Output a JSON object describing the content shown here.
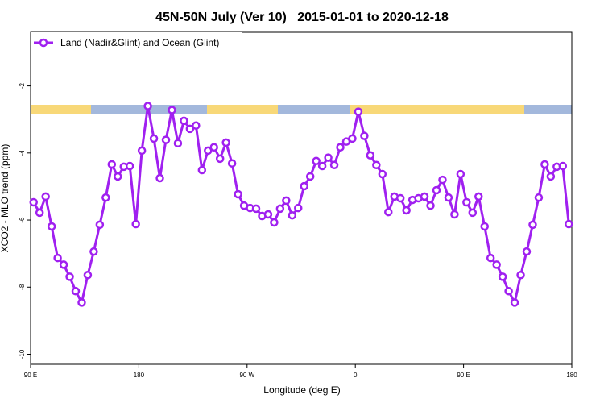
{
  "chart_data": {
    "type": "line",
    "title": "45N-50N July (Ver 10)   2015-01-01 to 2020-12-18",
    "xlabel": "Longitude (deg E)",
    "ylabel": "XCO2 - MLO trend (ppm)",
    "xlim": [
      90,
      540
    ],
    "xticks": [
      {
        "value": 90,
        "label": "90 E"
      },
      180,
      {
        "value": 270,
        "label": "90 W"
      },
      {
        "value": 360,
        "label": "0"
      },
      {
        "value": 450,
        "label": "90 E"
      },
      {
        "value": 540,
        "label": "180"
      }
    ],
    "ylim": [
      -10.3,
      -0.4
    ],
    "yticks": [
      -2,
      -4,
      -6,
      -8,
      -10
    ],
    "legend": "top-left",
    "x": [
      92.5,
      97.5,
      102.5,
      107.5,
      112.5,
      117.5,
      122.5,
      127.5,
      132.5,
      137.5,
      142.5,
      147.5,
      152.5,
      157.5,
      162.5,
      167.5,
      172.5,
      177.5,
      182.5,
      187.5,
      192.5,
      197.5,
      202.5,
      207.5,
      212.5,
      217.5,
      222.5,
      227.5,
      232.5,
      237.5,
      242.5,
      247.5,
      252.5,
      257.5,
      262.5,
      267.5,
      272.5,
      277.5,
      282.5,
      287.5,
      292.5,
      297.5,
      302.5,
      307.5,
      312.5,
      317.5,
      322.5,
      327.5,
      332.5,
      337.5,
      342.5,
      347.5,
      352.5,
      357.5,
      362.5,
      367.5,
      372.5,
      377.5,
      382.5,
      387.5,
      392.5,
      397.5,
      402.5,
      407.5,
      412.5,
      417.5,
      422.5,
      427.5,
      432.5,
      437.5,
      442.5,
      447.5,
      452.5,
      457.5,
      462.5,
      467.5,
      472.5,
      477.5,
      482.5,
      487.5,
      492.5,
      497.5,
      502.5,
      507.5,
      512.5,
      517.5,
      522.5,
      527.5,
      532.5,
      537.5
    ],
    "series": [
      {
        "name": "Land (Nadir&Glint) and Ocean (Glint)",
        "color": "#a020f0",
        "values": [
          -5.47,
          -5.78,
          -5.3,
          -6.19,
          -7.13,
          -7.33,
          -7.69,
          -8.12,
          -8.46,
          -7.64,
          -6.94,
          -6.14,
          -5.33,
          -4.34,
          -4.7,
          -4.41,
          -4.39,
          -6.12,
          -3.93,
          -2.6,
          -3.57,
          -4.75,
          -3.61,
          -2.72,
          -3.71,
          -3.04,
          -3.28,
          -3.18,
          -4.51,
          -3.93,
          -3.83,
          -4.17,
          -3.69,
          -4.31,
          -5.23,
          -5.57,
          -5.64,
          -5.66,
          -5.88,
          -5.83,
          -6.07,
          -5.66,
          -5.42,
          -5.86,
          -5.64,
          -4.99,
          -4.7,
          -4.24,
          -4.39,
          -4.14,
          -4.36,
          -3.83,
          -3.66,
          -3.57,
          -2.77,
          -3.49,
          -4.07,
          -4.36,
          -4.63,
          -5.76,
          -5.3,
          -5.35,
          -5.71,
          -5.4,
          -5.35,
          -5.3,
          -5.57,
          -5.11,
          -4.8,
          -5.33,
          -5.83,
          -4.63,
          -5.47,
          -5.78,
          -5.3,
          -6.19,
          -7.13,
          -7.33,
          -7.69,
          -8.12,
          -8.46,
          -7.64,
          -6.94,
          -6.14,
          -5.33,
          -4.34,
          -4.7,
          -4.41,
          -4.39,
          -6.12
        ]
      }
    ]
  }
}
